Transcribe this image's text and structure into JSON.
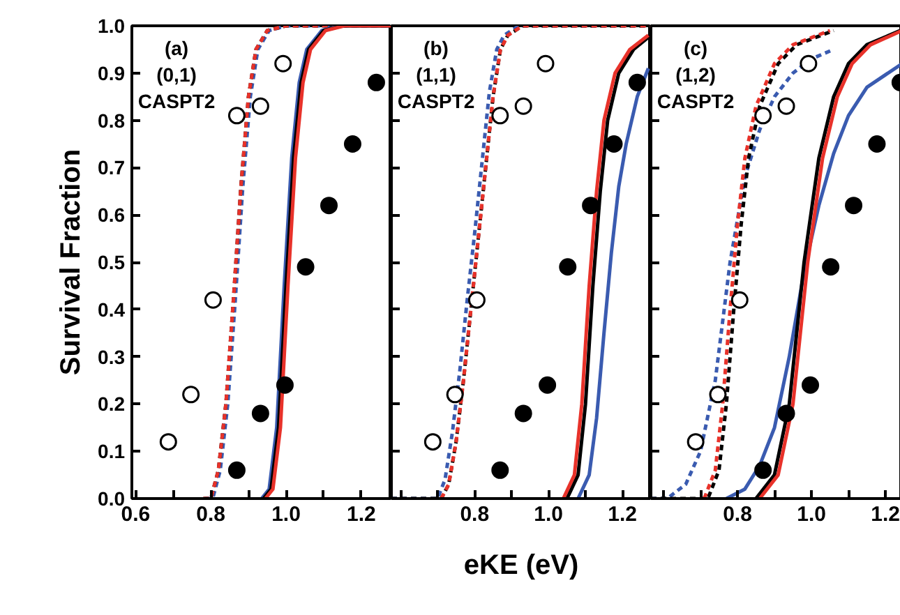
{
  "chart_data": [
    {
      "type": "line",
      "ylabel": "Survival Fraction",
      "annotations": [
        "(a)",
        "(0,1)",
        "CASPT2"
      ],
      "xlim": [
        0.59,
        1.28
      ],
      "ylim": [
        0,
        1.0
      ],
      "xticks": [
        0.6,
        {
          "value": 0.7,
          "label": null
        },
        0.8,
        {
          "value": 0.9,
          "label": null
        },
        {
          "value": 1.0,
          "label": "1.0"
        },
        {
          "value": 1.1,
          "label": null
        },
        1.2
      ],
      "yticks": [
        {
          "value": 0,
          "label": "0.0"
        },
        0.1,
        0.2,
        0.3,
        0.4,
        0.5,
        0.6,
        0.7,
        0.8,
        0.9,
        {
          "value": 1.0,
          "label": "1.0"
        }
      ],
      "grid": false,
      "series": [
        {
          "type": "line",
          "line_style": "dashed",
          "color": "#3a5bb0",
          "x": [
            0.785,
            0.805,
            0.825,
            0.845,
            0.865,
            0.885,
            0.905,
            0.925,
            0.955,
            1.0,
            1.28
          ],
          "values": [
            0,
            0,
            0.06,
            0.2,
            0.42,
            0.66,
            0.85,
            0.95,
            0.99,
            1.0,
            1.0
          ]
        },
        {
          "type": "line",
          "line_style": "dashed",
          "color": "#000000",
          "x": [
            0.78,
            0.8,
            0.82,
            0.84,
            0.86,
            0.88,
            0.9,
            0.92,
            0.95,
            1.0,
            1.28
          ],
          "values": [
            0,
            0,
            0.06,
            0.2,
            0.42,
            0.66,
            0.85,
            0.95,
            0.99,
            1.0,
            1.0
          ]
        },
        {
          "type": "line",
          "line_style": "dashed",
          "color": "#e8322a",
          "x": [
            0.78,
            0.8,
            0.82,
            0.84,
            0.86,
            0.88,
            0.9,
            0.92,
            0.95,
            1.0,
            1.28
          ],
          "values": [
            0,
            0,
            0.06,
            0.2,
            0.42,
            0.66,
            0.85,
            0.95,
            0.99,
            1.0,
            1.0
          ]
        },
        {
          "line_style": "solid",
          "color": "#3a5bb0",
          "x": [
            0.935,
            0.955,
            0.975,
            0.995,
            1.015,
            1.035,
            1.055,
            1.095,
            1.145,
            1.28
          ],
          "values": [
            0,
            0.02,
            0.15,
            0.45,
            0.72,
            0.88,
            0.95,
            0.99,
            1.0,
            1.0
          ]
        },
        {
          "line_style": "solid",
          "color": "#000000",
          "x": [
            0.94,
            0.96,
            0.98,
            1.0,
            1.02,
            1.04,
            1.06,
            1.1,
            1.15,
            1.28
          ],
          "values": [
            0,
            0.02,
            0.15,
            0.45,
            0.72,
            0.88,
            0.95,
            0.99,
            1.0,
            1.0
          ]
        },
        {
          "line_style": "solid",
          "color": "#e8322a",
          "x": [
            0.945,
            0.965,
            0.985,
            1.005,
            1.025,
            1.045,
            1.065,
            1.105,
            1.155,
            1.28
          ],
          "values": [
            0,
            0.02,
            0.15,
            0.45,
            0.72,
            0.88,
            0.95,
            0.99,
            1.0,
            1.0
          ]
        },
        {
          "type": "scatter",
          "marker": "circle",
          "color": "#ffffff",
          "x": [
            0.687,
            0.747,
            0.806,
            0.869,
            0.932,
            0.992
          ],
          "values": [
            0.12,
            0.22,
            0.42,
            0.81,
            0.83,
            0.92
          ]
        },
        {
          "type": "scatter",
          "marker": "circle",
          "color": "#000000",
          "x": [
            0.869,
            0.932,
            0.997,
            1.052,
            1.114,
            1.177,
            1.24
          ],
          "values": [
            0.06,
            0.18,
            0.24,
            0.49,
            0.62,
            0.75,
            0.88
          ]
        }
      ],
      "tick_labels": true
    },
    {
      "type": "line",
      "xlabel": "eKE (eV)",
      "annotations": [
        "(b)",
        "(1,1)",
        "CASPT2"
      ],
      "xlim": [
        0.575,
        1.277
      ],
      "ylim": [
        0,
        1.0
      ],
      "xticks": [
        {
          "value": 0.6,
          "label": null
        },
        {
          "value": 0.7,
          "label": null
        },
        0.8,
        {
          "value": 0.9,
          "label": null
        },
        {
          "value": 1.0,
          "label": "1.0"
        },
        {
          "value": 1.1,
          "label": null
        },
        1.2
      ],
      "yticks": [
        0,
        0.1,
        0.2,
        0.3,
        0.4,
        0.5,
        0.6,
        0.7,
        0.8,
        0.9,
        1.0
      ],
      "grid": false,
      "tick_labels": "x",
      "series": [
        {
          "type": "line",
          "line_style": "dashed",
          "color": "#3a5bb0",
          "x": [
            0.575,
            0.7,
            0.72,
            0.74,
            0.76,
            0.78,
            0.8,
            0.82,
            0.84,
            0.86,
            0.88,
            0.92,
            1.277
          ],
          "values": [
            0,
            0,
            0.04,
            0.14,
            0.27,
            0.42,
            0.56,
            0.71,
            0.86,
            0.95,
            0.98,
            1.0,
            1.0
          ]
        },
        {
          "type": "line",
          "line_style": "dashed",
          "color": "#000000",
          "x": [
            0.575,
            0.71,
            0.73,
            0.75,
            0.77,
            0.79,
            0.81,
            0.83,
            0.85,
            0.87,
            0.89,
            0.93,
            1.277
          ],
          "values": [
            0,
            0,
            0.03,
            0.12,
            0.25,
            0.4,
            0.55,
            0.7,
            0.85,
            0.95,
            0.98,
            1.0,
            1.0
          ]
        },
        {
          "type": "line",
          "line_style": "dashed",
          "color": "#e8322a",
          "x": [
            0.71,
            0.73,
            0.75,
            0.77,
            0.79,
            0.81,
            0.83,
            0.85,
            0.87,
            0.89,
            0.93,
            1.277
          ],
          "values": [
            0,
            0.03,
            0.12,
            0.25,
            0.4,
            0.55,
            0.7,
            0.85,
            0.95,
            0.98,
            1.0,
            1.0
          ]
        },
        {
          "line_style": "solid",
          "color": "#3a5bb0",
          "x": [
            1.08,
            1.11,
            1.13,
            1.15,
            1.17,
            1.19,
            1.21,
            1.24,
            1.27
          ],
          "values": [
            0,
            0.05,
            0.17,
            0.35,
            0.52,
            0.66,
            0.75,
            0.85,
            0.91
          ]
        },
        {
          "line_style": "solid",
          "color": "#000000",
          "x": [
            1.05,
            1.08,
            1.1,
            1.12,
            1.14,
            1.16,
            1.19,
            1.23,
            1.277
          ],
          "values": [
            0,
            0.05,
            0.2,
            0.45,
            0.65,
            0.8,
            0.9,
            0.95,
            0.98
          ]
        },
        {
          "line_style": "solid",
          "color": "#e8322a",
          "x": [
            1.04,
            1.07,
            1.09,
            1.11,
            1.13,
            1.15,
            1.18,
            1.22,
            1.27
          ],
          "values": [
            0,
            0.05,
            0.2,
            0.45,
            0.65,
            0.8,
            0.9,
            0.95,
            0.98
          ]
        },
        {
          "type": "scatter",
          "marker": "circle",
          "color": "#ffffff",
          "x": [
            0.687,
            0.747,
            0.806,
            0.869,
            0.932,
            0.992
          ],
          "values": [
            0.12,
            0.22,
            0.42,
            0.81,
            0.83,
            0.92
          ]
        },
        {
          "type": "scatter",
          "marker": "circle",
          "color": "#000000",
          "x": [
            0.869,
            0.932,
            0.997,
            1.052,
            1.114,
            1.177,
            1.24
          ],
          "values": [
            0.06,
            0.18,
            0.24,
            0.49,
            0.62,
            0.75,
            0.88
          ]
        }
      ]
    },
    {
      "type": "line",
      "annotations": [
        "(c)",
        "(1,2)",
        "CASPT2"
      ],
      "xlim": [
        0.566,
        1.245
      ],
      "ylim": [
        0,
        1.0
      ],
      "xticks": [
        {
          "value": 0.6,
          "label": null
        },
        {
          "value": 0.7,
          "label": null
        },
        0.8,
        {
          "value": 0.9,
          "label": null
        },
        {
          "value": 1.0,
          "label": "1.0"
        },
        {
          "value": 1.1,
          "label": null
        },
        1.2
      ],
      "yticks": [
        0,
        0.1,
        0.2,
        0.3,
        0.4,
        0.5,
        0.6,
        0.7,
        0.8,
        0.9,
        1.0
      ],
      "grid": false,
      "tick_labels": "x",
      "series": [
        {
          "type": "line",
          "line_style": "dashed",
          "color": "#3a5bb0",
          "x": [
            0.566,
            0.61,
            0.66,
            0.7,
            0.74,
            0.78,
            0.82,
            0.86,
            0.9,
            0.95,
            1.0,
            1.06
          ],
          "values": [
            0,
            0,
            0.03,
            0.1,
            0.25,
            0.5,
            0.68,
            0.78,
            0.85,
            0.9,
            0.93,
            0.95
          ]
        },
        {
          "type": "line",
          "line_style": "dashed",
          "color": "#000000",
          "x": [
            0.566,
            0.72,
            0.75,
            0.77,
            0.79,
            0.81,
            0.83,
            0.86,
            0.91,
            0.96,
            1.06
          ],
          "values": [
            0,
            0,
            0.06,
            0.2,
            0.4,
            0.58,
            0.72,
            0.83,
            0.92,
            0.96,
            0.99
          ]
        },
        {
          "type": "line",
          "line_style": "dashed",
          "color": "#e8322a",
          "x": [
            0.71,
            0.74,
            0.76,
            0.78,
            0.8,
            0.82,
            0.85,
            0.9,
            0.95,
            1.05
          ],
          "values": [
            0,
            0.06,
            0.2,
            0.4,
            0.58,
            0.72,
            0.83,
            0.92,
            0.96,
            0.99
          ]
        },
        {
          "line_style": "solid",
          "color": "#3a5bb0",
          "x": [
            0.77,
            0.82,
            0.86,
            0.9,
            0.94,
            0.98,
            1.02,
            1.06,
            1.1,
            1.15,
            1.245
          ],
          "values": [
            0,
            0.02,
            0.07,
            0.15,
            0.3,
            0.48,
            0.62,
            0.73,
            0.81,
            0.87,
            0.92
          ]
        },
        {
          "line_style": "solid",
          "color": "#000000",
          "x": [
            0.85,
            0.9,
            0.94,
            0.98,
            1.02,
            1.06,
            1.1,
            1.15,
            1.24
          ],
          "values": [
            0,
            0.05,
            0.2,
            0.5,
            0.72,
            0.85,
            0.92,
            0.96,
            0.99
          ]
        },
        {
          "line_style": "solid",
          "color": "#e8322a",
          "x": [
            0.86,
            0.91,
            0.95,
            0.99,
            1.03,
            1.07,
            1.11,
            1.16,
            1.245
          ],
          "values": [
            0,
            0.05,
            0.2,
            0.5,
            0.72,
            0.85,
            0.92,
            0.96,
            0.99
          ]
        },
        {
          "type": "scatter",
          "marker": "circle",
          "color": "#ffffff",
          "x": [
            0.687,
            0.747,
            0.806,
            0.869,
            0.932,
            0.992
          ],
          "values": [
            0.12,
            0.22,
            0.42,
            0.81,
            0.83,
            0.92
          ]
        },
        {
          "type": "scatter",
          "marker": "circle",
          "color": "#000000",
          "x": [
            0.869,
            0.932,
            0.997,
            1.052,
            1.114,
            1.177,
            1.24
          ],
          "values": [
            0.06,
            0.18,
            0.24,
            0.49,
            0.62,
            0.75,
            0.88
          ]
        }
      ]
    }
  ]
}
